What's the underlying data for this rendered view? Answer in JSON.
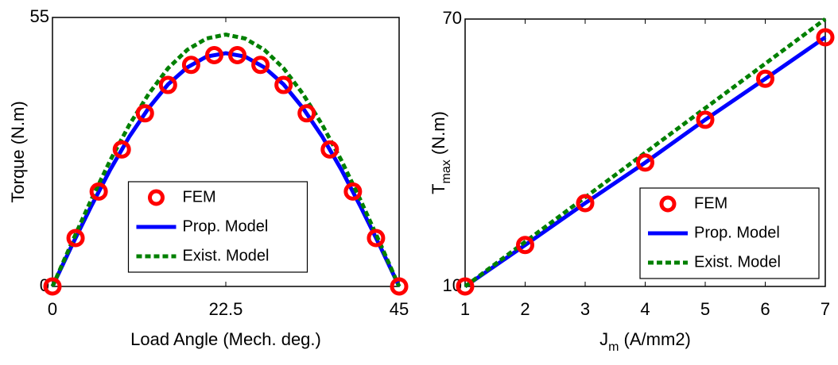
{
  "chart_data": [
    {
      "type": "line",
      "xlabel": "Load Angle (Mech. deg.)",
      "ylabel": "Torque (N.m)",
      "xlim": [
        0,
        45
      ],
      "xticks": [
        0,
        22.5,
        45
      ],
      "ylim": [
        0,
        55
      ],
      "yticks": [
        0,
        55
      ],
      "legend": "lower center",
      "series": [
        {
          "name": "FEM",
          "color": "#ff0000",
          "marker": "circle",
          "x": [
            0,
            3,
            6,
            9,
            12,
            15,
            18,
            21,
            24,
            27,
            30,
            33,
            36,
            39,
            42,
            45
          ],
          "values": [
            0,
            9.9,
            19.4,
            28.0,
            35.4,
            41.2,
            45.3,
            47.3,
            47.3,
            45.3,
            41.2,
            35.4,
            28.0,
            19.4,
            9.9,
            0
          ]
        },
        {
          "name": "Prop. Model",
          "color": "#0000ff",
          "linestyle": "solid",
          "x": [
            0,
            2.5,
            5,
            7.5,
            10,
            12.5,
            15,
            17.5,
            20,
            22.5,
            25,
            27.5,
            30,
            32.5,
            35,
            37.5,
            40,
            42.5,
            45
          ],
          "values": [
            0,
            8.3,
            16.3,
            23.9,
            30.7,
            36.5,
            41.3,
            44.8,
            47.0,
            47.7,
            47.0,
            44.8,
            41.3,
            36.5,
            30.7,
            23.9,
            16.3,
            8.3,
            0
          ]
        },
        {
          "name": "Exist. Model",
          "color": "#008000",
          "linestyle": "dashed",
          "x": [
            0,
            2.5,
            5,
            7.5,
            10,
            12.5,
            15,
            17.5,
            20,
            22.5,
            25,
            27.5,
            30,
            32.5,
            35,
            37.5,
            40,
            42.5,
            45
          ],
          "values": [
            0,
            8.9,
            17.6,
            25.8,
            33.1,
            39.4,
            44.6,
            48.4,
            50.7,
            51.5,
            50.7,
            48.4,
            44.6,
            39.4,
            33.1,
            25.8,
            17.6,
            8.9,
            0
          ]
        }
      ]
    },
    {
      "type": "line",
      "xlabel": {
        "base": "J",
        "sub": "m",
        "rest": " (A/mm2)"
      },
      "ylabel": {
        "base": "T",
        "sub": "max",
        "rest": " (N.m)"
      },
      "xlim": [
        1,
        7
      ],
      "xticks": [
        1,
        2,
        3,
        4,
        5,
        6,
        7
      ],
      "ylim": [
        10,
        70
      ],
      "yticks": [
        10,
        70
      ],
      "legend": "lower right",
      "series": [
        {
          "name": "FEM",
          "color": "#ff0000",
          "marker": "circle",
          "x": [
            1,
            2,
            3,
            4,
            5,
            6,
            7
          ],
          "values": [
            10,
            19.3,
            28.7,
            37.8,
            47.4,
            56.6,
            65.9
          ]
        },
        {
          "name": "Prop. Model",
          "color": "#0000ff",
          "linestyle": "solid",
          "x": [
            1,
            2,
            3,
            4,
            5,
            6,
            7
          ],
          "values": [
            10,
            19.3,
            28.7,
            37.8,
            47.4,
            56.6,
            65.9
          ]
        },
        {
          "name": "Exist. Model",
          "color": "#008000",
          "linestyle": "dashed",
          "x": [
            1,
            2,
            3,
            4,
            5,
            6,
            7
          ],
          "values": [
            10,
            20,
            30,
            40,
            50,
            60,
            70
          ]
        }
      ]
    }
  ]
}
